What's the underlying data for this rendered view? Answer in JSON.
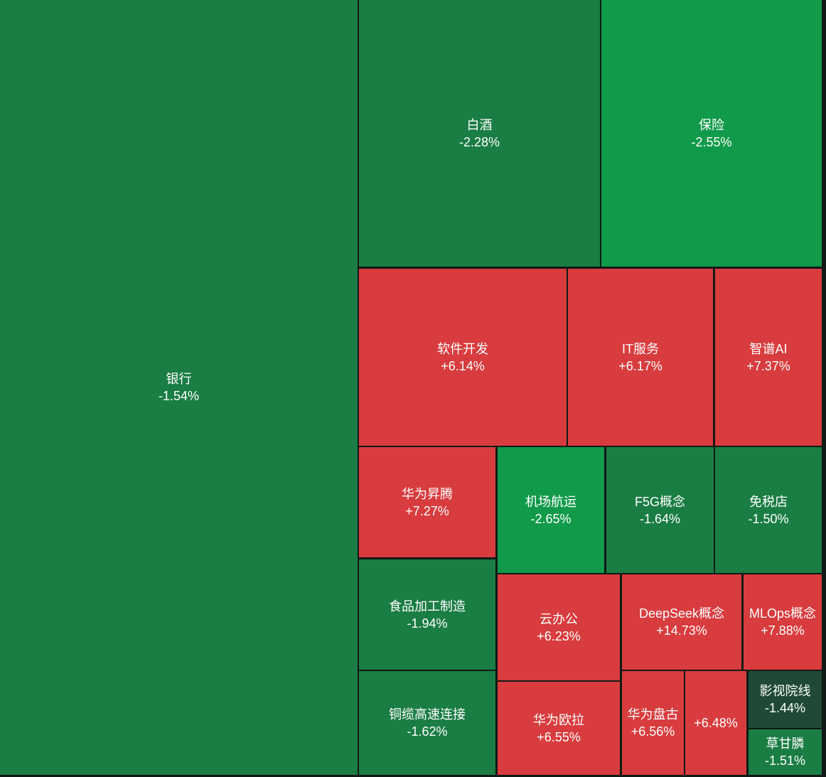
{
  "chart_data": {
    "type": "treemap",
    "colors": {
      "positive": "#d83c3e",
      "negative": "#1a7d44",
      "negative_strong": "#119a4a",
      "negative_weak": "#1f4a35",
      "background": "#111a16"
    },
    "items": [
      {
        "name": "银行",
        "change": "-1.54%",
        "value": -1.54
      },
      {
        "name": "白酒",
        "change": "-2.28%",
        "value": -2.28
      },
      {
        "name": "保险",
        "change": "-2.55%",
        "value": -2.55
      },
      {
        "name": "软件开发",
        "change": "+6.14%",
        "value": 6.14
      },
      {
        "name": "IT服务",
        "change": "+6.17%",
        "value": 6.17
      },
      {
        "name": "智谱AI",
        "change": "+7.37%",
        "value": 7.37
      },
      {
        "name": "华为昇腾",
        "change": "+7.27%",
        "value": 7.27
      },
      {
        "name": "机场航运",
        "change": "-2.65%",
        "value": -2.65
      },
      {
        "name": "F5G概念",
        "change": "-1.64%",
        "value": -1.64
      },
      {
        "name": "免税店",
        "change": "-1.50%",
        "value": -1.5
      },
      {
        "name": "食品加工制造",
        "change": "-1.94%",
        "value": -1.94
      },
      {
        "name": "云办公",
        "change": "+6.23%",
        "value": 6.23
      },
      {
        "name": "DeepSeek概念",
        "change": "+14.73%",
        "value": 14.73
      },
      {
        "name": "MLOps概念",
        "change": "+7.88%",
        "value": 7.88
      },
      {
        "name": "铜缆高速连接",
        "change": "-1.62%",
        "value": -1.62
      },
      {
        "name": "华为欧拉",
        "change": "+6.55%",
        "value": 6.55
      },
      {
        "name": "华为盘古",
        "change": "+6.56%",
        "value": 6.56
      },
      {
        "name": "",
        "change": "+6.48%",
        "value": 6.48
      },
      {
        "name": "影视院线",
        "change": "-1.44%",
        "value": -1.44
      },
      {
        "name": "草甘膦",
        "change": "-1.51%",
        "value": -1.51
      }
    ]
  }
}
